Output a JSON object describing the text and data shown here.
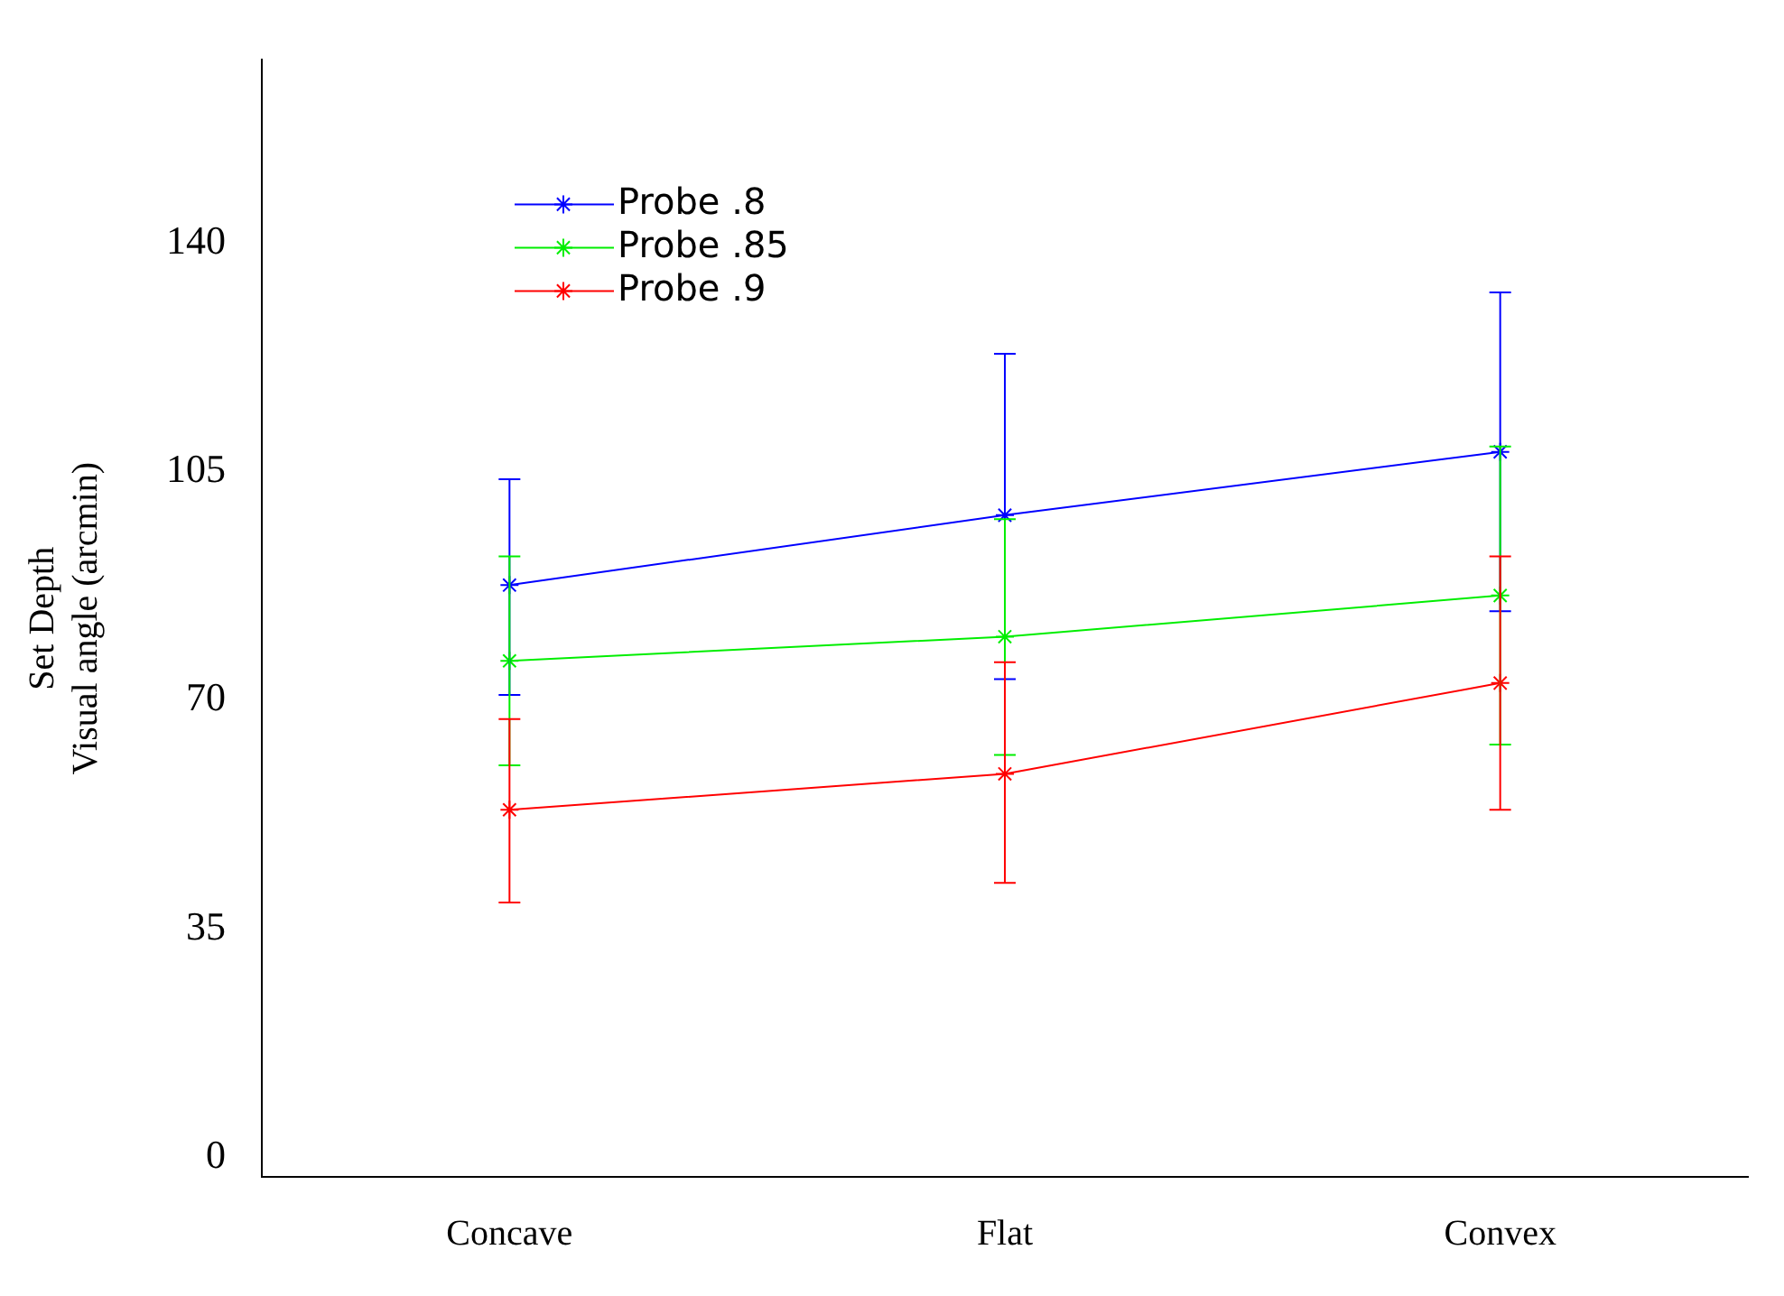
{
  "chart_data": {
    "type": "line",
    "ylabel": "Set Depth\nVisual angle (arcmin)",
    "categories": [
      "Concave",
      "Flat",
      "Convex"
    ],
    "series": [
      {
        "name": "Probe .8",
        "color": "#0000ff",
        "values": [
          87.6,
          98.3,
          108
        ],
        "errors": [
          [
            70.8,
            103.8
          ],
          [
            73.2,
            123
          ],
          [
            83.6,
            132.4
          ]
        ]
      },
      {
        "name": "Probe .85",
        "color": "#00ee00",
        "values": [
          76,
          79.7,
          86
        ],
        "errors": [
          [
            60,
            92
          ],
          [
            61.6,
            97.7
          ],
          [
            63.2,
            108.8
          ]
        ]
      },
      {
        "name": "Probe .9",
        "color": "#ff0000",
        "values": [
          53.2,
          58.7,
          72.6
        ],
        "errors": [
          [
            39,
            67.1
          ],
          [
            42,
            75.8
          ],
          [
            53.2,
            92
          ]
        ]
      }
    ],
    "ylim": [
      -3,
      168
    ],
    "yticks": [
      0,
      35,
      70,
      105,
      140
    ],
    "grid": false,
    "legend": "top left",
    "marker": "cross",
    "line_style": "solid"
  }
}
